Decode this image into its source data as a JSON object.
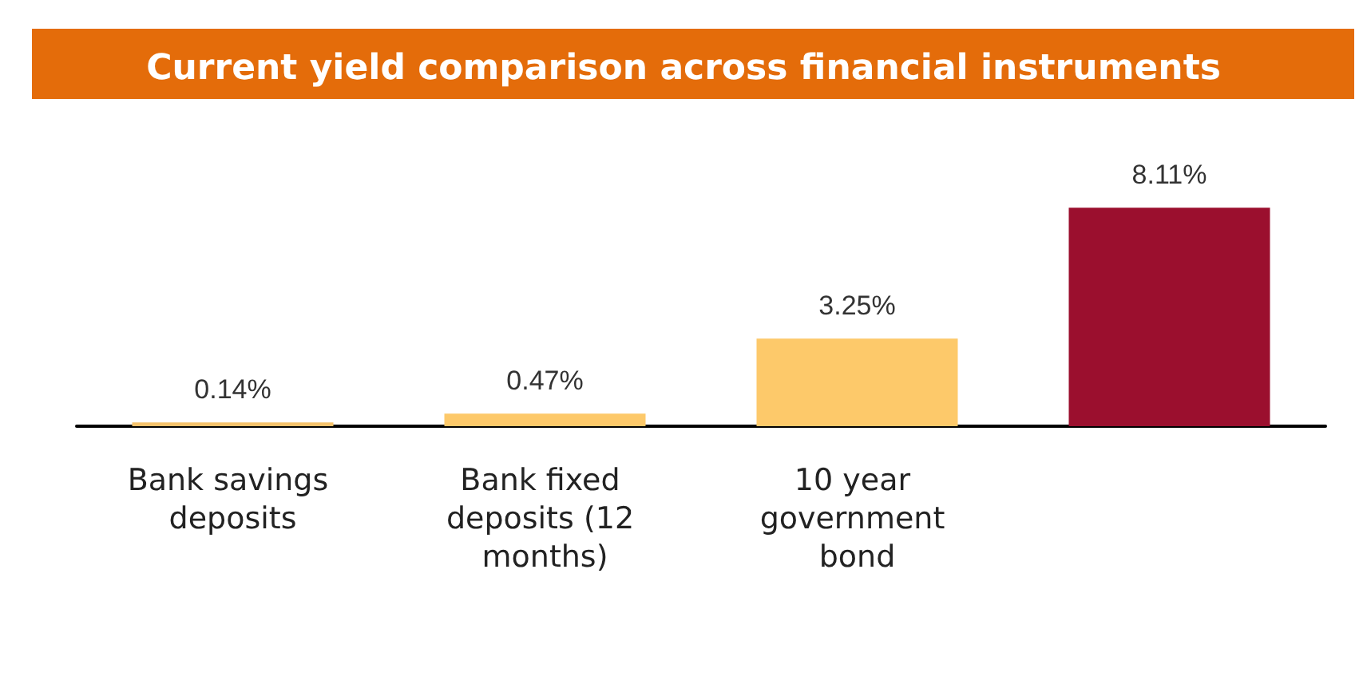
{
  "chart_data": {
    "type": "bar",
    "title": "Current yield comparison across financial instruments",
    "categories": [
      "Bank savings deposits",
      "Bank fixed deposits (12 months)",
      "10 year government bond",
      null
    ],
    "values": [
      0.14,
      0.47,
      3.25,
      8.11
    ],
    "colors": [
      "#f5c26b",
      "#fdc96a",
      "#fdc96a",
      "#9b0f2e"
    ],
    "value_labels": [
      "0.14%",
      "0.47%",
      "3.25%",
      "8.11%"
    ]
  }
}
